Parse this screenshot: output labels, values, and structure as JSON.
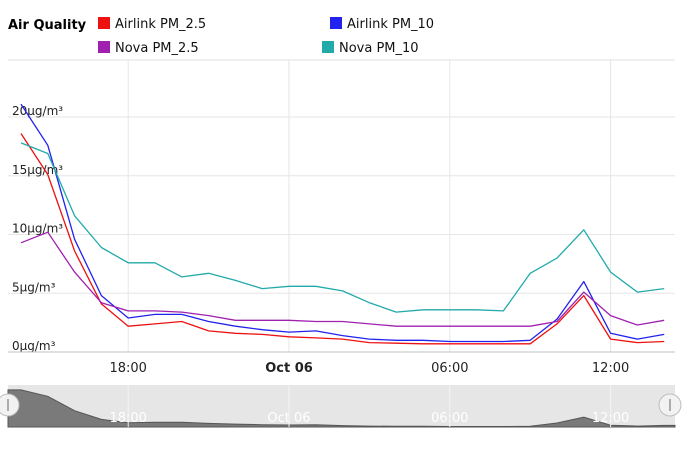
{
  "chart_data": {
    "type": "line",
    "title": "Air Quality",
    "unit": "µg/m³",
    "x_start": "2023-10-05T14:00",
    "x_step_minutes": 60,
    "x_ticks": [
      {
        "label": "18:00",
        "time": "2023-10-05T18:00",
        "bold": false
      },
      {
        "label": "Oct 06",
        "time": "2023-10-06T00:00",
        "bold": true
      },
      {
        "label": "06:00",
        "time": "2023-10-06T06:00",
        "bold": false
      },
      {
        "label": "12:00",
        "time": "2023-10-06T12:00",
        "bold": false
      }
    ],
    "y_ticks": [
      {
        "value": 0,
        "label": "0µg/m³"
      },
      {
        "value": 5,
        "label": "5µg/m³"
      },
      {
        "value": 10,
        "label": "10µg/m³"
      },
      {
        "value": 15,
        "label": "15µg/m³"
      },
      {
        "value": 20,
        "label": "20µg/m³"
      }
    ],
    "ylim": [
      0,
      20
    ],
    "grid": true,
    "legend_position": "top",
    "series": [
      {
        "name": "Airlink PM_2.5",
        "color": "#ee1111",
        "values": [
          18,
          14.5,
          8,
          3.5,
          1.6,
          1.8,
          2,
          1.2,
          1,
          0.9,
          0.7,
          0.6,
          0.5,
          0.2,
          0.15,
          0.1,
          0.1,
          0.1,
          0.1,
          0.1,
          1.8,
          4.2,
          0.5,
          0.2,
          0.3
        ]
      },
      {
        "name": "Airlink PM_10",
        "color": "#2222ee",
        "values": [
          20.5,
          17,
          9,
          4.2,
          2.3,
          2.6,
          2.6,
          2,
          1.6,
          1.3,
          1.1,
          1.2,
          0.8,
          0.5,
          0.4,
          0.4,
          0.3,
          0.3,
          0.3,
          0.4,
          2.2,
          5.4,
          1,
          0.5,
          0.9
        ]
      },
      {
        "name": "Nova PM_2.5",
        "color": "#a020b0",
        "values": [
          8.7,
          9.6,
          6.2,
          3.6,
          2.9,
          2.9,
          2.8,
          2.5,
          2.1,
          2.1,
          2.1,
          2,
          2,
          1.8,
          1.6,
          1.6,
          1.6,
          1.6,
          1.6,
          1.6,
          2,
          4.5,
          2.5,
          1.7,
          2.1
        ]
      },
      {
        "name": "Nova PM_10",
        "color": "#22aaaa",
        "values": [
          17.2,
          16.3,
          11,
          8.3,
          7,
          7,
          5.8,
          6.1,
          5.5,
          4.8,
          5,
          5,
          4.6,
          3.6,
          2.8,
          3,
          3,
          3,
          2.9,
          6.1,
          7.4,
          9.8,
          6.2,
          4.5,
          4.8
        ]
      }
    ]
  }
}
